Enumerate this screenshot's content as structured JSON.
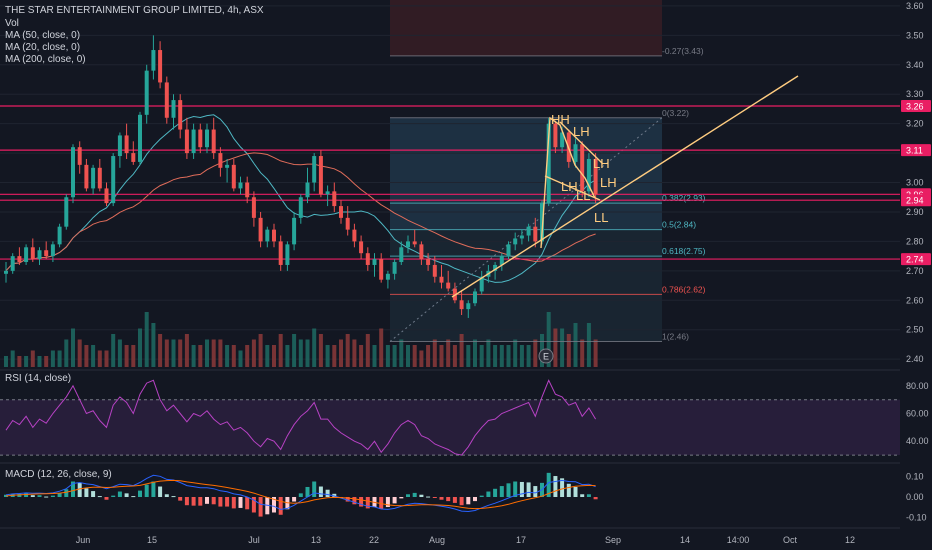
{
  "header": {
    "title": "THE STAR ENTERTAINMENT GROUP LIMITED, 4h, ASX",
    "vol": "Vol",
    "ma50": "MA (50, close, 0)",
    "ma20": "MA (20, close, 0)",
    "ma200": "MA (200, close, 0)"
  },
  "rsi_panel": {
    "label": "RSI (14, close)",
    "ticks": [
      "80.00",
      "60.00",
      "40.00"
    ]
  },
  "macd_panel": {
    "label": "MACD (12, 26, close, 9)",
    "ticks": [
      "0.10",
      "0.00",
      "-0.10"
    ]
  },
  "earnings_marker": "E",
  "colors": {
    "up": "#26a69a",
    "down": "#ef5350",
    "hline": "#e91e63",
    "trend": "#ffcc80",
    "ma_teal": "#4fb8c4",
    "ma_red": "#e06c5a",
    "rsi": "#b742c4"
  },
  "chart_data": {
    "type": "candlestick",
    "y_axis_ticks": [
      "3.60",
      "3.50",
      "3.40",
      "3.30",
      "3.20",
      "3.10",
      "3.00",
      "2.90",
      "2.80",
      "2.70",
      "2.60",
      "2.50",
      "2.40"
    ],
    "x_axis_ticks": [
      "Jun",
      "15",
      "Jul",
      "13",
      "22",
      "Aug",
      "17",
      "Sep",
      "14",
      "14:00",
      "Oct",
      "12"
    ],
    "ylim": [
      2.37,
      3.62
    ],
    "horizontal_levels": [
      {
        "label": "3.26",
        "value": 3.26
      },
      {
        "label": "3.11",
        "value": 3.11
      },
      {
        "label": "2.96",
        "value": 2.96
      },
      {
        "label": "2.94",
        "value": 2.94
      },
      {
        "label": "2.74",
        "value": 2.74
      }
    ],
    "fibonacci": [
      {
        "label": "-0.27(3.43)",
        "value": 3.43
      },
      {
        "label": "0(3.22)",
        "value": 3.22
      },
      {
        "label": "0.382(2.93)",
        "value": 2.93
      },
      {
        "label": "0.5(2.84)",
        "value": 2.84
      },
      {
        "label": "0.618(2.75)",
        "value": 2.75
      },
      {
        "label": "0.786(2.62)",
        "value": 2.62
      },
      {
        "label": "1(2.46)",
        "value": 2.46
      }
    ],
    "pattern_labels": [
      "HH",
      "LH",
      "LH",
      "LH",
      "LL",
      "LH",
      "LL"
    ],
    "ohlc": [
      [
        2.69,
        2.73,
        2.66,
        2.7
      ],
      [
        2.7,
        2.76,
        2.69,
        2.75
      ],
      [
        2.75,
        2.78,
        2.72,
        2.73
      ],
      [
        2.73,
        2.79,
        2.72,
        2.78
      ],
      [
        2.78,
        2.81,
        2.73,
        2.74
      ],
      [
        2.74,
        2.78,
        2.72,
        2.77
      ],
      [
        2.77,
        2.8,
        2.74,
        2.75
      ],
      [
        2.75,
        2.8,
        2.73,
        2.79
      ],
      [
        2.79,
        2.86,
        2.78,
        2.85
      ],
      [
        2.85,
        2.96,
        2.84,
        2.95
      ],
      [
        2.95,
        3.13,
        2.93,
        3.12
      ],
      [
        3.12,
        3.14,
        3.03,
        3.06
      ],
      [
        3.06,
        3.08,
        2.97,
        2.98
      ],
      [
        2.98,
        3.06,
        2.96,
        3.05
      ],
      [
        3.05,
        3.08,
        2.97,
        2.98
      ],
      [
        2.98,
        3.0,
        2.92,
        2.93
      ],
      [
        2.93,
        3.1,
        2.92,
        3.09
      ],
      [
        3.09,
        3.17,
        3.05,
        3.16
      ],
      [
        3.16,
        3.2,
        3.08,
        3.1
      ],
      [
        3.1,
        3.14,
        3.06,
        3.07
      ],
      [
        3.07,
        3.24,
        3.06,
        3.23
      ],
      [
        3.23,
        3.4,
        3.2,
        3.38
      ],
      [
        3.38,
        3.5,
        3.35,
        3.45
      ],
      [
        3.45,
        3.48,
        3.32,
        3.34
      ],
      [
        3.34,
        3.36,
        3.2,
        3.22
      ],
      [
        3.22,
        3.3,
        3.18,
        3.28
      ],
      [
        3.28,
        3.3,
        3.15,
        3.18
      ],
      [
        3.18,
        3.22,
        3.08,
        3.1
      ],
      [
        3.1,
        3.2,
        3.08,
        3.18
      ],
      [
        3.18,
        3.2,
        3.1,
        3.12
      ],
      [
        3.12,
        3.2,
        3.1,
        3.18
      ],
      [
        3.18,
        3.22,
        3.08,
        3.1
      ],
      [
        3.1,
        3.12,
        3.02,
        3.05
      ],
      [
        3.05,
        3.08,
        3.0,
        3.06
      ],
      [
        3.06,
        3.08,
        2.97,
        2.98
      ],
      [
        2.98,
        3.02,
        2.96,
        3.0
      ],
      [
        3.0,
        3.02,
        2.93,
        2.95
      ],
      [
        2.95,
        2.97,
        2.85,
        2.88
      ],
      [
        2.88,
        2.9,
        2.78,
        2.8
      ],
      [
        2.8,
        2.85,
        2.78,
        2.84
      ],
      [
        2.84,
        2.86,
        2.78,
        2.8
      ],
      [
        2.8,
        2.82,
        2.7,
        2.72
      ],
      [
        2.72,
        2.8,
        2.7,
        2.79
      ],
      [
        2.79,
        2.9,
        2.77,
        2.88
      ],
      [
        2.88,
        2.96,
        2.86,
        2.95
      ],
      [
        2.95,
        3.05,
        2.93,
        3.0
      ],
      [
        3.0,
        3.1,
        2.97,
        3.09
      ],
      [
        3.09,
        3.11,
        2.95,
        2.96
      ],
      [
        2.96,
        2.99,
        2.92,
        2.97
      ],
      [
        2.97,
        3.0,
        2.9,
        2.92
      ],
      [
        2.92,
        2.94,
        2.86,
        2.88
      ],
      [
        2.88,
        2.92,
        2.82,
        2.84
      ],
      [
        2.84,
        2.86,
        2.78,
        2.8
      ],
      [
        2.8,
        2.82,
        2.74,
        2.76
      ],
      [
        2.76,
        2.78,
        2.7,
        2.72
      ],
      [
        2.72,
        2.76,
        2.68,
        2.74
      ],
      [
        2.74,
        2.76,
        2.66,
        2.67
      ],
      [
        2.67,
        2.7,
        2.64,
        2.69
      ],
      [
        2.69,
        2.74,
        2.67,
        2.73
      ],
      [
        2.73,
        2.8,
        2.72,
        2.78
      ],
      [
        2.78,
        2.82,
        2.76,
        2.8
      ],
      [
        2.8,
        2.84,
        2.78,
        2.79
      ],
      [
        2.79,
        2.8,
        2.72,
        2.74
      ],
      [
        2.74,
        2.76,
        2.7,
        2.72
      ],
      [
        2.72,
        2.75,
        2.66,
        2.68
      ],
      [
        2.68,
        2.72,
        2.64,
        2.66
      ],
      [
        2.66,
        2.7,
        2.63,
        2.64
      ],
      [
        2.64,
        2.66,
        2.59,
        2.6
      ],
      [
        2.6,
        2.63,
        2.55,
        2.57
      ],
      [
        2.57,
        2.6,
        2.54,
        2.59
      ],
      [
        2.59,
        2.64,
        2.58,
        2.63
      ],
      [
        2.63,
        2.7,
        2.62,
        2.68
      ],
      [
        2.68,
        2.72,
        2.66,
        2.7
      ],
      [
        2.7,
        2.73,
        2.67,
        2.72
      ],
      [
        2.72,
        2.76,
        2.7,
        2.75
      ],
      [
        2.75,
        2.8,
        2.74,
        2.79
      ],
      [
        2.79,
        2.83,
        2.77,
        2.81
      ],
      [
        2.81,
        2.84,
        2.79,
        2.82
      ],
      [
        2.82,
        2.86,
        2.8,
        2.85
      ],
      [
        2.85,
        2.88,
        2.78,
        2.8
      ],
      [
        2.8,
        2.94,
        2.79,
        2.93
      ],
      [
        2.93,
        3.22,
        2.92,
        3.2
      ],
      [
        3.2,
        3.21,
        3.1,
        3.12
      ],
      [
        3.12,
        3.19,
        3.1,
        3.17
      ],
      [
        3.17,
        3.18,
        3.05,
        3.07
      ],
      [
        3.07,
        3.15,
        3.05,
        3.13
      ],
      [
        3.13,
        3.14,
        2.95,
        2.97
      ],
      [
        2.97,
        3.1,
        2.95,
        3.08
      ],
      [
        3.08,
        3.1,
        2.93,
        2.96
      ]
    ],
    "volume": [
      2,
      3,
      2,
      2,
      3,
      2,
      2,
      3,
      3,
      5,
      7,
      5,
      4,
      4,
      3,
      3,
      6,
      5,
      4,
      4,
      7,
      10,
      8,
      6,
      5,
      5,
      5,
      6,
      4,
      4,
      5,
      5,
      5,
      4,
      4,
      3,
      4,
      5,
      6,
      4,
      4,
      6,
      4,
      6,
      5,
      5,
      7,
      6,
      4,
      4,
      5,
      6,
      5,
      4,
      6,
      4,
      7,
      4,
      4,
      5,
      4,
      4,
      3,
      4,
      5,
      4,
      5,
      4,
      6,
      4,
      5,
      4,
      5,
      4,
      4,
      4,
      5,
      4,
      4,
      5,
      6,
      10,
      7,
      7,
      6,
      8,
      5,
      8,
      5
    ],
    "rsi": [
      48,
      55,
      52,
      58,
      50,
      56,
      53,
      60,
      66,
      72,
      80,
      70,
      60,
      62,
      55,
      50,
      66,
      72,
      68,
      60,
      74,
      82,
      84,
      70,
      62,
      66,
      60,
      54,
      60,
      58,
      62,
      56,
      52,
      54,
      48,
      50,
      46,
      40,
      36,
      42,
      40,
      34,
      44,
      52,
      58,
      62,
      68,
      56,
      56,
      50,
      46,
      43,
      40,
      38,
      34,
      40,
      32,
      38,
      46,
      52,
      55,
      52,
      44,
      42,
      38,
      36,
      34,
      31,
      30,
      36,
      44,
      50,
      55,
      56,
      60,
      62,
      64,
      66,
      68,
      58,
      72,
      84,
      74,
      72,
      66,
      68,
      58,
      64,
      56
    ],
    "macd": [
      0.01,
      0.015,
      0.017,
      0.02,
      0.018,
      0.019,
      0.017,
      0.02,
      0.028,
      0.04,
      0.065,
      0.07,
      0.063,
      0.06,
      0.05,
      0.04,
      0.05,
      0.062,
      0.06,
      0.055,
      0.07,
      0.09,
      0.105,
      0.1,
      0.085,
      0.082,
      0.07,
      0.055,
      0.05,
      0.045,
      0.045,
      0.04,
      0.03,
      0.025,
      0.015,
      0.01,
      0.0,
      -0.015,
      -0.035,
      -0.04,
      -0.045,
      -0.06,
      -0.055,
      -0.04,
      -0.02,
      0.0,
      0.02,
      0.015,
      0.012,
      0.005,
      -0.005,
      -0.015,
      -0.025,
      -0.035,
      -0.045,
      -0.048,
      -0.058,
      -0.06,
      -0.055,
      -0.045,
      -0.035,
      -0.03,
      -0.032,
      -0.036,
      -0.04,
      -0.045,
      -0.05,
      -0.058,
      -0.068,
      -0.07,
      -0.065,
      -0.052,
      -0.04,
      -0.03,
      -0.018,
      -0.005,
      0.008,
      0.015,
      0.022,
      0.02,
      0.035,
      0.07,
      0.075,
      0.08,
      0.075,
      0.074,
      0.06,
      0.062,
      0.05
    ],
    "macd_signal": [
      0.005,
      0.008,
      0.01,
      0.012,
      0.014,
      0.015,
      0.016,
      0.017,
      0.019,
      0.023,
      0.031,
      0.039,
      0.044,
      0.047,
      0.048,
      0.046,
      0.047,
      0.05,
      0.052,
      0.053,
      0.056,
      0.063,
      0.071,
      0.077,
      0.079,
      0.08,
      0.078,
      0.073,
      0.069,
      0.064,
      0.06,
      0.056,
      0.051,
      0.046,
      0.04,
      0.034,
      0.027,
      0.019,
      0.008,
      -0.002,
      -0.011,
      -0.021,
      -0.028,
      -0.03,
      -0.028,
      -0.022,
      -0.014,
      -0.008,
      -0.004,
      -0.002,
      -0.003,
      -0.005,
      -0.009,
      -0.014,
      -0.02,
      -0.026,
      -0.032,
      -0.038,
      -0.041,
      -0.042,
      -0.041,
      -0.039,
      -0.037,
      -0.037,
      -0.038,
      -0.039,
      -0.041,
      -0.045,
      -0.05,
      -0.054,
      -0.056,
      -0.055,
      -0.052,
      -0.048,
      -0.042,
      -0.035,
      -0.026,
      -0.018,
      -0.01,
      -0.004,
      0.004,
      0.017,
      0.029,
      0.039,
      0.046,
      0.052,
      0.054,
      0.056,
      0.055
    ]
  }
}
